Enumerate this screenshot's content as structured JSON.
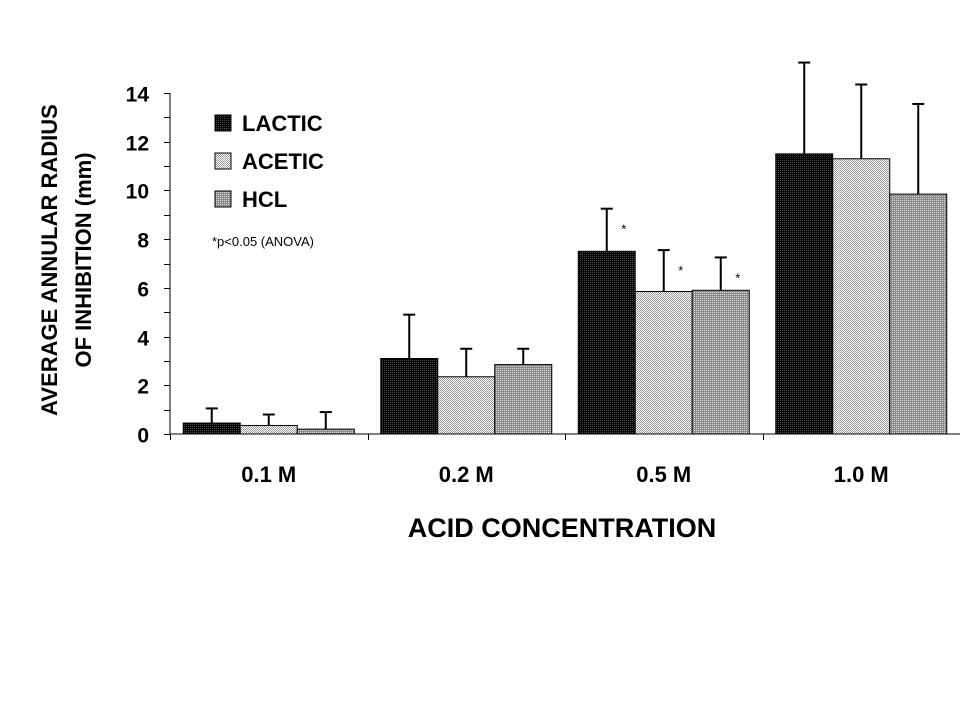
{
  "chart_data": {
    "type": "bar",
    "categories": [
      "0.1 M",
      "0.2 M",
      "0.5 M",
      "1.0 M"
    ],
    "series": [
      {
        "name": "LACTIC",
        "values": [
          0.45,
          3.1,
          7.5,
          11.5
        ],
        "errors": [
          0.6,
          1.8,
          1.75,
          3.75
        ],
        "color": "#1e1e1e"
      },
      {
        "name": "ACETIC",
        "values": [
          0.35,
          2.35,
          5.85,
          11.3
        ],
        "errors": [
          0.45,
          1.15,
          1.7,
          3.05
        ],
        "color": "#d0d0d0"
      },
      {
        "name": "HCL",
        "values": [
          0.2,
          2.85,
          5.9,
          9.85
        ],
        "errors": [
          0.7,
          0.65,
          1.35,
          3.7
        ],
        "color": "#a4a4a4"
      }
    ],
    "significance": [
      {
        "series": "LACTIC",
        "category": "0.5 M",
        "mark": "*"
      },
      {
        "series": "ACETIC",
        "category": "0.5 M",
        "mark": "*"
      },
      {
        "series": "HCL",
        "category": "0.5 M",
        "mark": "*"
      }
    ],
    "ylim": [
      0,
      14
    ],
    "yticks": [
      0,
      2,
      4,
      6,
      8,
      10,
      12,
      14
    ],
    "ylabel_lines": [
      "AVERAGE ANNULAR RADIUS",
      "OF INHIBITION (mm)"
    ],
    "xlabel": "ACID CONCENTRATION",
    "legend_position": "top-left",
    "note": "*p<0.05 (ANOVA)"
  }
}
